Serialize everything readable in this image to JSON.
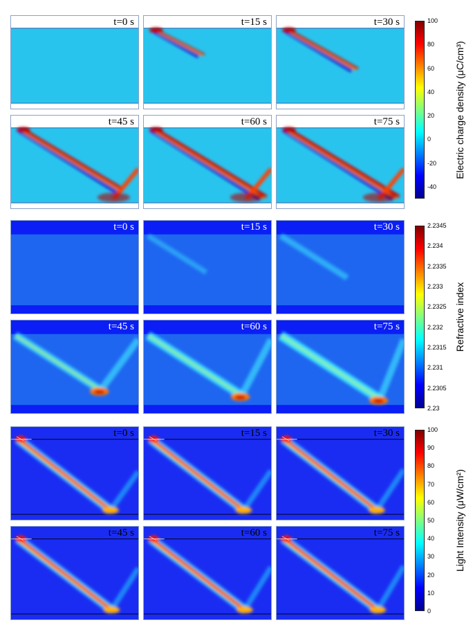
{
  "figure": {
    "rows": [
      {
        "quantity": "Electric charge density",
        "colorbar": {
          "title": "Electric charge density (μC/cm³)",
          "ticks": [
            "100",
            "80",
            "60",
            "40",
            "20",
            "0",
            "-20",
            "-40"
          ]
        },
        "panels": [
          {
            "time": "t=0 s",
            "strength": 0.0
          },
          {
            "time": "t=15 s",
            "strength": 0.35
          },
          {
            "time": "t=30 s",
            "strength": 0.55
          },
          {
            "time": "t=45 s",
            "strength": 0.85
          },
          {
            "time": "t=60 s",
            "strength": 0.95
          },
          {
            "time": "t=75 s",
            "strength": 1.0
          }
        ]
      },
      {
        "quantity": "Refractive index",
        "colorbar": {
          "title": "Refractive index",
          "ticks": [
            "2.2345",
            "2.234",
            "2.2335",
            "2.233",
            "2.2325",
            "2.232",
            "2.2315",
            "2.231",
            "2.2305",
            "2.23"
          ]
        },
        "panels": [
          {
            "time": "t=0 s",
            "strength": 0.0
          },
          {
            "time": "t=15 s",
            "strength": 0.2
          },
          {
            "time": "t=30 s",
            "strength": 0.35
          },
          {
            "time": "t=45 s",
            "strength": 0.7
          },
          {
            "time": "t=60 s",
            "strength": 0.85
          },
          {
            "time": "t=75 s",
            "strength": 0.95
          }
        ]
      },
      {
        "quantity": "Light Intensity",
        "colorbar": {
          "title": "Light Intensity (μW/cm²)",
          "ticks": [
            "100",
            "90",
            "80",
            "70",
            "60",
            "50",
            "40",
            "30",
            "20",
            "10",
            "0"
          ]
        },
        "panels": [
          {
            "time": "t=0 s",
            "strength": 0.75
          },
          {
            "time": "t=15 s",
            "strength": 0.8
          },
          {
            "time": "t=30 s",
            "strength": 0.85
          },
          {
            "time": "t=45 s",
            "strength": 0.9
          },
          {
            "time": "t=60 s",
            "strength": 0.95
          },
          {
            "time": "t=75 s",
            "strength": 1.0
          }
        ]
      }
    ]
  },
  "colors": {
    "jet": [
      "#00008f",
      "#0000ff",
      "#0080ff",
      "#00ffff",
      "#80ff80",
      "#ffff00",
      "#ff8000",
      "#ff0000",
      "#800000"
    ],
    "charge_background": "#29c4ee",
    "index_background": "#1e66f0",
    "light_background": "#1a2cf2",
    "panel_border": "#8aa0c8"
  }
}
